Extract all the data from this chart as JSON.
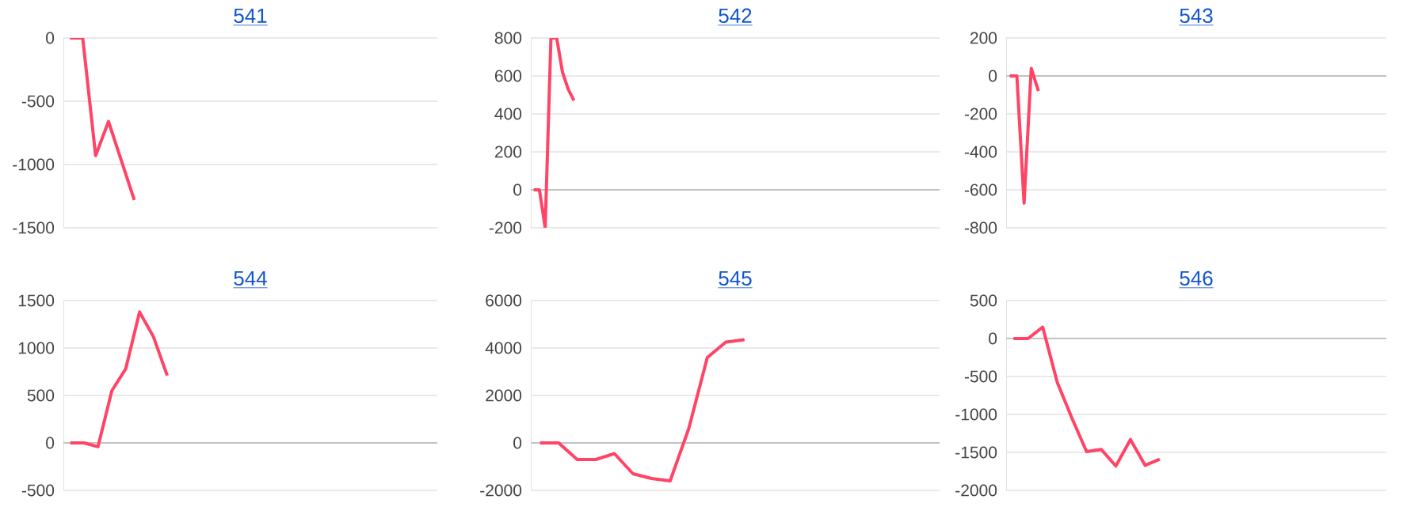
{
  "chart_data": [
    {
      "type": "line",
      "title": "541",
      "color": "#ff4466",
      "ylim": [
        -1500,
        0
      ],
      "yticks": [
        -1500,
        -1000,
        -500,
        0
      ],
      "grid": "y",
      "categories": [
        null,
        null,
        null,
        null,
        null,
        null,
        null,
        null,
        null,
        null,
        null,
        null,
        null,
        null,
        null,
        null,
        null,
        null,
        null,
        null,
        null,
        null,
        null,
        null,
        null,
        null,
        null,
        null,
        null
      ],
      "values": [
        0,
        0,
        -930,
        -660,
        -970,
        -1280,
        null,
        null,
        null,
        null,
        null,
        null,
        null,
        null,
        null,
        null,
        null,
        null,
        null,
        null,
        null,
        null,
        null,
        null,
        null,
        null,
        null,
        null,
        null
      ]
    },
    {
      "type": "line",
      "title": "542",
      "color": "#ff4466",
      "ylim": [
        -200,
        800
      ],
      "yticks": [
        -200,
        0,
        200,
        400,
        600,
        800
      ],
      "grid": "y",
      "categories": [
        null,
        null,
        null,
        null,
        null,
        null,
        null,
        null,
        null,
        null,
        null,
        null,
        null,
        null,
        null,
        null,
        null,
        null,
        null,
        null,
        null,
        null,
        null,
        null,
        null,
        null,
        null,
        null,
        null,
        null,
        null,
        null,
        null,
        null,
        null,
        null,
        null,
        null,
        null,
        null,
        null,
        null,
        null,
        null,
        null,
        null,
        null,
        null,
        null,
        null,
        null,
        null,
        null,
        null,
        null,
        null,
        null,
        null,
        null,
        null,
        null,
        null,
        null,
        null,
        null,
        null,
        null,
        null,
        null,
        null,
        null
      ],
      "values": [
        0,
        0,
        -200,
        800,
        800,
        620,
        530,
        470,
        null,
        null,
        null,
        null,
        null,
        null,
        null,
        null,
        null,
        null,
        null,
        null,
        null,
        null,
        null,
        null,
        null,
        null,
        null,
        null,
        null,
        null,
        null,
        null,
        null,
        null,
        null,
        null,
        null,
        null,
        null,
        null,
        null,
        null,
        null,
        null,
        null,
        null,
        null,
        null,
        null,
        null,
        null,
        null,
        null,
        null,
        null,
        null,
        null,
        null,
        null,
        null,
        null,
        null,
        null,
        null,
        null,
        null,
        null,
        null,
        null,
        null,
        null
      ]
    },
    {
      "type": "line",
      "title": "543",
      "color": "#ff4466",
      "ylim": [
        -800,
        200
      ],
      "yticks": [
        -800,
        -600,
        -400,
        -200,
        0,
        200
      ],
      "grid": "y",
      "categories": [
        null,
        null,
        null,
        null,
        null,
        null,
        null,
        null,
        null,
        null,
        null,
        null,
        null,
        null,
        null,
        null,
        null,
        null,
        null,
        null,
        null,
        null,
        null,
        null,
        null,
        null,
        null,
        null,
        null,
        null,
        null,
        null,
        null,
        null,
        null,
        null,
        null,
        null,
        null,
        null,
        null,
        null,
        null,
        null,
        null,
        null,
        null,
        null,
        null,
        null,
        null,
        null,
        null
      ],
      "values": [
        0,
        0,
        -670,
        40,
        -80,
        null,
        null,
        null,
        null,
        null,
        null,
        null,
        null,
        null,
        null,
        null,
        null,
        null,
        null,
        null,
        null,
        null,
        null,
        null,
        null,
        null,
        null,
        null,
        null,
        null,
        null,
        null,
        null,
        null,
        null,
        null,
        null,
        null,
        null,
        null,
        null,
        null,
        null,
        null,
        null,
        null,
        null,
        null,
        null,
        null,
        null,
        null,
        null
      ]
    },
    {
      "type": "line",
      "title": "544",
      "color": "#ff4466",
      "ylim": [
        -500,
        1500
      ],
      "yticks": [
        -500,
        0,
        500,
        1000,
        1500
      ],
      "grid": "y",
      "categories": [
        null,
        null,
        null,
        null,
        null,
        null,
        null,
        null,
        null,
        null,
        null,
        null,
        null,
        null,
        null,
        null,
        null,
        null,
        null,
        null,
        null,
        null,
        null,
        null,
        null,
        null,
        null
      ],
      "values": [
        0,
        0,
        -40,
        550,
        780,
        1380,
        1120,
        710,
        null,
        null,
        null,
        null,
        null,
        null,
        null,
        null,
        null,
        null,
        null,
        null,
        null,
        null,
        null,
        null,
        null,
        null,
        null
      ]
    },
    {
      "type": "line",
      "title": "545",
      "color": "#ff4466",
      "ylim": [
        -2000,
        6000
      ],
      "yticks": [
        -2000,
        0,
        2000,
        4000,
        6000
      ],
      "grid": "y",
      "categories": [
        null,
        null,
        null,
        null,
        null,
        null,
        null,
        null,
        null,
        null,
        null,
        null,
        null,
        null,
        null,
        null,
        null,
        null,
        null,
        null,
        null,
        null
      ],
      "values": [
        0,
        0,
        -700,
        -700,
        -450,
        -1300,
        -1500,
        -1600,
        600,
        3600,
        4250,
        4350,
        null,
        null,
        null,
        null,
        null,
        null,
        null,
        null,
        null,
        null
      ]
    },
    {
      "type": "line",
      "title": "546",
      "color": "#ff4466",
      "ylim": [
        -2000,
        500
      ],
      "yticks": [
        -2000,
        -1500,
        -1000,
        -500,
        0,
        500
      ],
      "grid": "y",
      "categories": [
        null,
        null,
        null,
        null,
        null,
        null,
        null,
        null,
        null,
        null,
        null,
        null,
        null,
        null,
        null,
        null,
        null,
        null,
        null,
        null,
        null,
        null,
        null,
        null,
        null,
        null
      ],
      "values": [
        0,
        0,
        150,
        -580,
        -1050,
        -1490,
        -1460,
        -1680,
        -1330,
        -1670,
        -1590,
        null,
        null,
        null,
        null,
        null,
        null,
        null,
        null,
        null,
        null,
        null,
        null,
        null,
        null,
        null
      ]
    }
  ]
}
